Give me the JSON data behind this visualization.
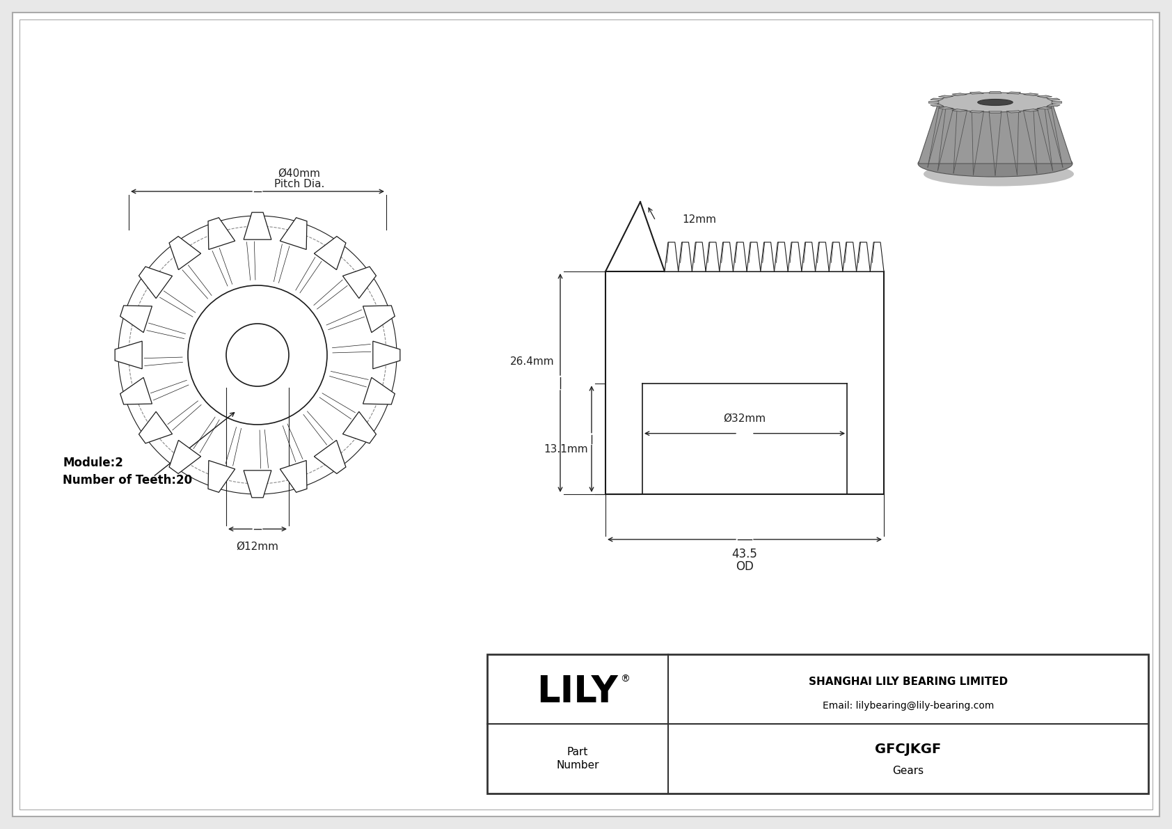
{
  "bg_color": "#e8e8e8",
  "inner_bg": "#ffffff",
  "border_color": "#333333",
  "line_color": "#1a1a1a",
  "dim_color": "#222222",
  "bold_text_color": "#000000",
  "company_name": "SHANGHAI LILY BEARING LIMITED",
  "email": "Email: lilybearing@lily-bearing.com",
  "part_number": "GFCJKGF",
  "part_type": "Gears",
  "part_label": "Part\nNumber",
  "module_text": "Module:2",
  "teeth_text": "Number of Teeth:20",
  "num_teeth": 20,
  "figw": 16.84,
  "figh": 11.91,
  "dpi": 100
}
